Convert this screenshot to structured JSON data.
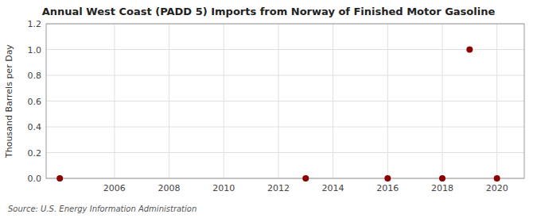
{
  "chart_data": {
    "type": "scatter",
    "title": "Annual West Coast (PADD 5) Imports from Norway of Finished Motor Gasoline",
    "y_label": "Thousand Barrels per Day",
    "source": "Source: U.S. Energy Information Administration",
    "x": [
      2004,
      2013,
      2016,
      2018,
      2019,
      2020
    ],
    "values": [
      0.0,
      0.0,
      0.0,
      0.0,
      1.0,
      0.0
    ],
    "color": "#8b0000",
    "xlim": [
      2003.5,
      2021
    ],
    "ylim": [
      0.0,
      1.2
    ],
    "xticks": [
      2006,
      2008,
      2010,
      2012,
      2014,
      2016,
      2018,
      2020
    ],
    "yticks": [
      {
        "value": 0.0,
        "label": "0.0"
      },
      0.2,
      0.4,
      0.6,
      0.8,
      {
        "value": 1.0,
        "label": "1.0"
      },
      1.2
    ],
    "grid": true
  }
}
